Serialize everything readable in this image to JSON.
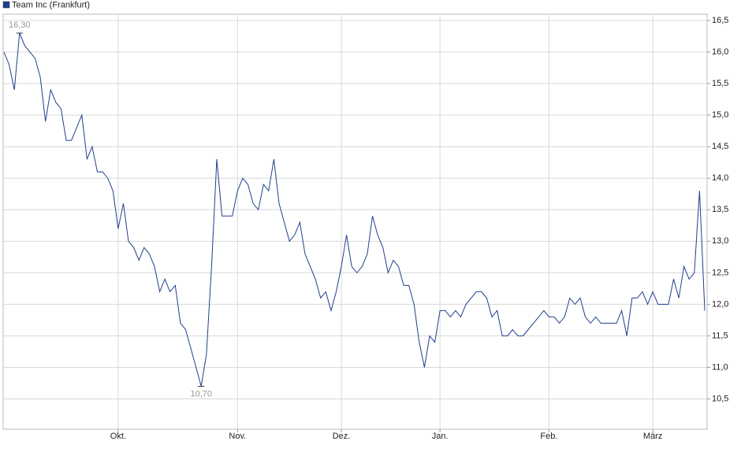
{
  "chart_data": {
    "type": "line",
    "categories": [
      null,
      null,
      null,
      null,
      null,
      null,
      null,
      null,
      null,
      null,
      null,
      null,
      null,
      null,
      null,
      null,
      null,
      null,
      null,
      null,
      null,
      null,
      "Okt.",
      null,
      null,
      null,
      null,
      null,
      null,
      null,
      null,
      null,
      null,
      null,
      null,
      null,
      null,
      null,
      null,
      null,
      null,
      null,
      null,
      null,
      null,
      "Nov.",
      null,
      null,
      null,
      null,
      null,
      null,
      null,
      null,
      null,
      null,
      null,
      null,
      null,
      null,
      null,
      null,
      null,
      null,
      null,
      "Dez.",
      null,
      null,
      null,
      null,
      null,
      null,
      null,
      null,
      null,
      null,
      null,
      null,
      null,
      null,
      null,
      null,
      null,
      null,
      "Jan.",
      null,
      null,
      null,
      null,
      null,
      null,
      null,
      null,
      null,
      null,
      null,
      null,
      null,
      null,
      null,
      null,
      null,
      null,
      null,
      null,
      "Feb.",
      null,
      null,
      null,
      null,
      null,
      null,
      null,
      null,
      null,
      null,
      null,
      null,
      null,
      null,
      null,
      null,
      null,
      null,
      null,
      "März",
      null,
      null,
      null,
      null,
      null,
      null,
      null,
      null,
      null,
      null
    ],
    "series": [
      {
        "name": "Team Inc (Frankfurt)",
        "color": "#1f3f8f",
        "values": [
          16.0,
          15.8,
          15.4,
          16.3,
          16.1,
          16.0,
          15.9,
          15.6,
          14.9,
          15.4,
          15.2,
          15.1,
          14.6,
          14.6,
          14.8,
          15.0,
          14.3,
          14.5,
          14.1,
          14.1,
          14.0,
          13.8,
          13.2,
          13.6,
          13.0,
          12.9,
          12.7,
          12.9,
          12.8,
          12.6,
          12.2,
          12.4,
          12.2,
          12.3,
          11.7,
          11.6,
          11.3,
          11.0,
          10.7,
          11.2,
          12.6,
          14.3,
          13.4,
          13.4,
          13.4,
          13.8,
          14.0,
          13.9,
          13.6,
          13.5,
          13.9,
          13.8,
          14.3,
          13.6,
          13.3,
          13.0,
          13.1,
          13.3,
          12.8,
          12.6,
          12.4,
          12.1,
          12.2,
          11.9,
          12.2,
          12.6,
          13.1,
          12.6,
          12.5,
          12.6,
          12.8,
          13.4,
          13.1,
          12.9,
          12.5,
          12.7,
          12.6,
          12.3,
          12.3,
          12.0,
          11.4,
          11.0,
          11.5,
          11.4,
          11.9,
          11.9,
          11.8,
          11.9,
          11.8,
          12.0,
          12.1,
          12.2,
          12.2,
          12.1,
          11.8,
          11.9,
          11.5,
          11.5,
          11.6,
          11.5,
          11.5,
          11.6,
          11.7,
          11.8,
          11.9,
          11.8,
          11.8,
          11.7,
          11.8,
          12.1,
          12.0,
          12.1,
          11.8,
          11.7,
          11.8,
          11.7,
          11.7,
          11.7,
          11.7,
          11.9,
          11.5,
          12.1,
          12.1,
          12.2,
          12.0,
          12.2,
          12.0,
          12.0,
          12.0,
          12.4,
          12.1,
          12.6,
          12.4,
          12.5,
          13.8,
          11.9
        ],
        "value_labels": [
          null,
          null,
          null,
          "16,30",
          null,
          null,
          null,
          null,
          null,
          null,
          null,
          null,
          null,
          null,
          null,
          null,
          null,
          null,
          null,
          null,
          null,
          null,
          null,
          null,
          null,
          null,
          null,
          null,
          null,
          null,
          null,
          null,
          null,
          null,
          null,
          null,
          null,
          null,
          "10,70",
          null,
          null,
          null,
          null,
          null,
          null,
          null,
          null,
          null,
          null,
          null,
          null,
          null,
          null,
          null,
          null,
          null,
          null,
          null,
          null,
          null,
          null,
          null,
          null,
          null,
          null,
          null,
          null,
          null,
          null,
          null,
          null,
          null,
          null,
          null,
          null,
          null,
          null,
          null,
          null,
          null,
          null,
          null,
          null,
          null,
          null,
          null,
          null,
          null,
          null,
          null,
          null,
          null,
          null,
          null,
          null,
          null,
          null,
          null,
          null,
          null,
          null,
          null,
          null,
          null,
          null,
          null,
          null,
          null,
          null,
          null,
          null,
          null,
          null,
          null,
          null,
          null,
          null,
          null,
          null,
          null,
          null,
          null,
          null,
          null,
          null,
          null,
          null,
          null,
          null,
          null,
          null,
          null,
          null,
          null,
          null,
          null
        ]
      }
    ],
    "ylim": [
      10.02,
      16.6
    ],
    "yticks": [
      {
        "value": 10.5,
        "label": "10,5"
      },
      {
        "value": 11.0,
        "label": "11,0"
      },
      {
        "value": 11.5,
        "label": "11,5"
      },
      {
        "value": 12.0,
        "label": "12,0"
      },
      {
        "value": 12.5,
        "label": "12,5"
      },
      {
        "value": 13.0,
        "label": "13,0"
      },
      {
        "value": 13.5,
        "label": "13,5"
      },
      {
        "value": 14.0,
        "label": "14,0"
      },
      {
        "value": 14.5,
        "label": "14,5"
      },
      {
        "value": 15.0,
        "label": "15,0"
      },
      {
        "value": 15.5,
        "label": "15,5"
      },
      {
        "value": 16.0,
        "label": "16,0"
      },
      {
        "value": 16.5,
        "label": "16,5"
      }
    ],
    "grid": true,
    "legend": "top-left"
  }
}
